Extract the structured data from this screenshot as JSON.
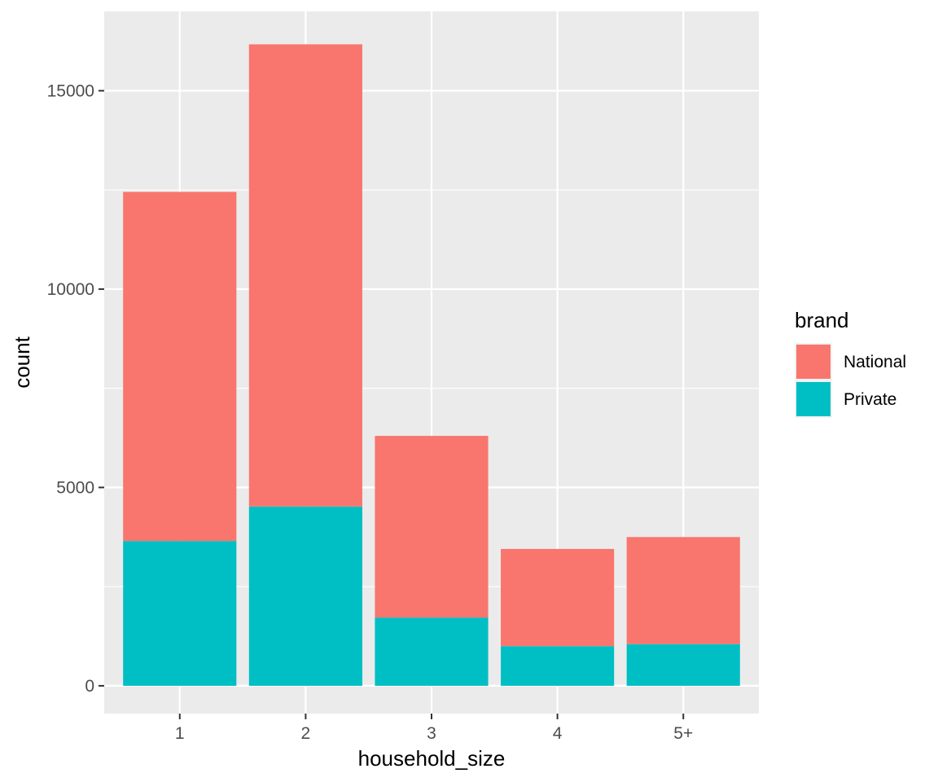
{
  "chart_data": {
    "type": "bar",
    "stacked": true,
    "xlabel": "household_size",
    "ylabel": "count",
    "categories": [
      "1",
      "2",
      "3",
      "4",
      "5+"
    ],
    "series": [
      {
        "name": "National",
        "color": "#F8766D",
        "values": [
          8800,
          11650,
          4580,
          2450,
          2700
        ]
      },
      {
        "name": "Private",
        "color": "#00BFC4",
        "values": [
          3650,
          4520,
          1720,
          1000,
          1050
        ]
      }
    ],
    "yticks": [
      0,
      5000,
      10000,
      15000
    ],
    "ylim": [
      -700,
      17000
    ],
    "grid": true,
    "panel_background": "#EBEBEB",
    "legend": {
      "title": "brand",
      "position": "right"
    }
  }
}
